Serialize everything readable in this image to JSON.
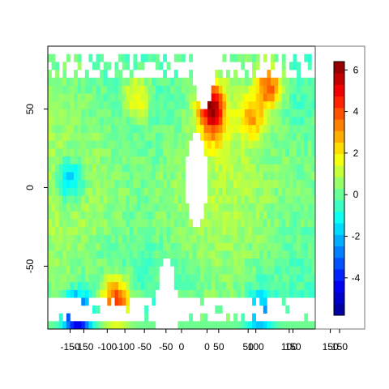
{
  "chart_data": {
    "type": "heatmap",
    "title": "",
    "xlabel": "",
    "ylabel": "",
    "x_ticks_primary": [
      "-150",
      "-100",
      "-50",
      "0",
      "50",
      "100",
      "150"
    ],
    "x_ticks_overlap": [
      "-150",
      "-100",
      "-50",
      "0",
      "50",
      "100",
      "150"
    ],
    "x_ticks_colorbar": [
      "150"
    ],
    "y_ticks": [
      "50",
      "0",
      "-50"
    ],
    "colorbar_ticks": [
      "6",
      "4",
      "2",
      "0",
      "-2",
      "-4"
    ],
    "colorbar_range": [
      -5.8,
      6.4
    ],
    "xlim": [
      -180,
      180
    ],
    "ylim": [
      -90,
      90
    ],
    "grid": false,
    "legend_position": "right (colorbar)",
    "palette": [
      "#00008F",
      "#0000FF",
      "#0080FF",
      "#00FFFF",
      "#80FF80",
      "#FFFF00",
      "#FF8000",
      "#FF0000",
      "#800000"
    ],
    "hotspots": [
      {
        "x": 40,
        "y": 52,
        "value": 6.0
      },
      {
        "x": -88,
        "y": -72,
        "value": 5.0
      },
      {
        "x": 118,
        "y": 65,
        "value": 4.2
      },
      {
        "x": -60,
        "y": 58,
        "value": 2.5
      },
      {
        "x": 95,
        "y": 45,
        "value": 3.0
      },
      {
        "x": 45,
        "y": 35,
        "value": 2.0
      },
      {
        "x": -150,
        "y": 5,
        "value": -2.0
      },
      {
        "x": -140,
        "y": -82,
        "value": -5.0
      },
      {
        "x": 105,
        "y": -80,
        "value": -2.3
      }
    ],
    "missing_regions": [
      {
        "x": 20,
        "y": 5
      },
      {
        "x": -20,
        "y": -77
      },
      {
        "x": 30,
        "y": 78
      }
    ]
  }
}
